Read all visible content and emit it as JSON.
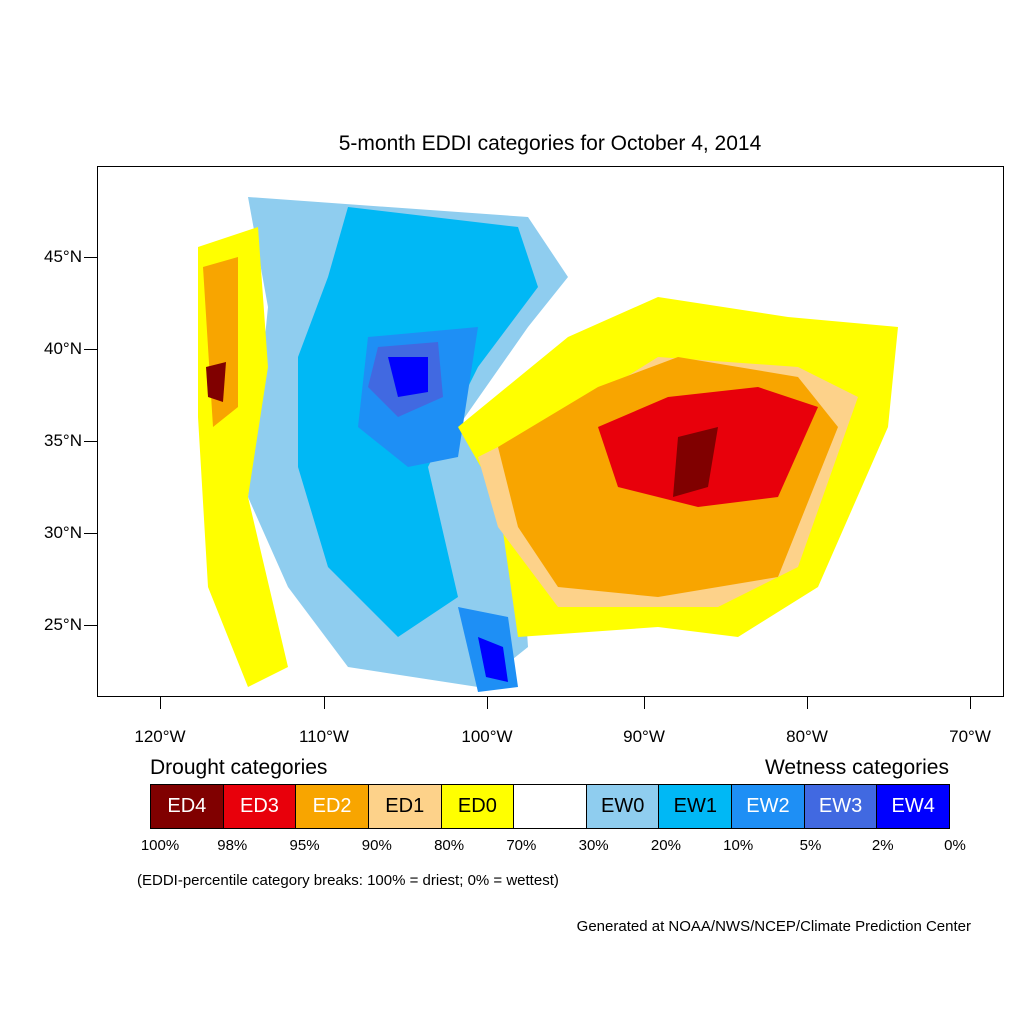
{
  "title": "5-month EDDI categories for October 4, 2014",
  "latitude_labels": [
    "45°N",
    "40°N",
    "35°N",
    "30°N",
    "25°N"
  ],
  "longitude_labels": [
    "120°W",
    "110°W",
    "100°W",
    "90°W",
    "80°W",
    "70°W"
  ],
  "legend": {
    "drought_heading": "Drought categories",
    "wetness_heading": "Wetness categories",
    "categories": [
      {
        "label": "ED4",
        "color": "#800000",
        "text_color": "#ffffff"
      },
      {
        "label": "ED3",
        "color": "#e8000b",
        "text_color": "#ffffff"
      },
      {
        "label": "ED2",
        "color": "#f8a500",
        "text_color": "#ffffff"
      },
      {
        "label": "ED1",
        "color": "#fdd28a",
        "text_color": "#000000"
      },
      {
        "label": "ED0",
        "color": "#ffff00",
        "text_color": "#000000"
      },
      {
        "label": "",
        "color": "#ffffff",
        "text_color": "#000000"
      },
      {
        "label": "EW0",
        "color": "#8fcdef",
        "text_color": "#000000"
      },
      {
        "label": "EW1",
        "color": "#00b8f5",
        "text_color": "#000000"
      },
      {
        "label": "EW2",
        "color": "#1e8ff5",
        "text_color": "#ffffff"
      },
      {
        "label": "EW3",
        "color": "#4169e1",
        "text_color": "#ffffff"
      },
      {
        "label": "EW4",
        "color": "#0000ff",
        "text_color": "#ffffff"
      }
    ],
    "percentiles": [
      "100%",
      "98%",
      "95%",
      "90%",
      "80%",
      "70%",
      "30%",
      "20%",
      "10%",
      "5%",
      "2%",
      "0%"
    ]
  },
  "note": "(EDDI-percentile category breaks: 100% = driest; 0% = wettest)",
  "credit": "Generated at NOAA/NWS/NCEP/Climate Prediction Center"
}
